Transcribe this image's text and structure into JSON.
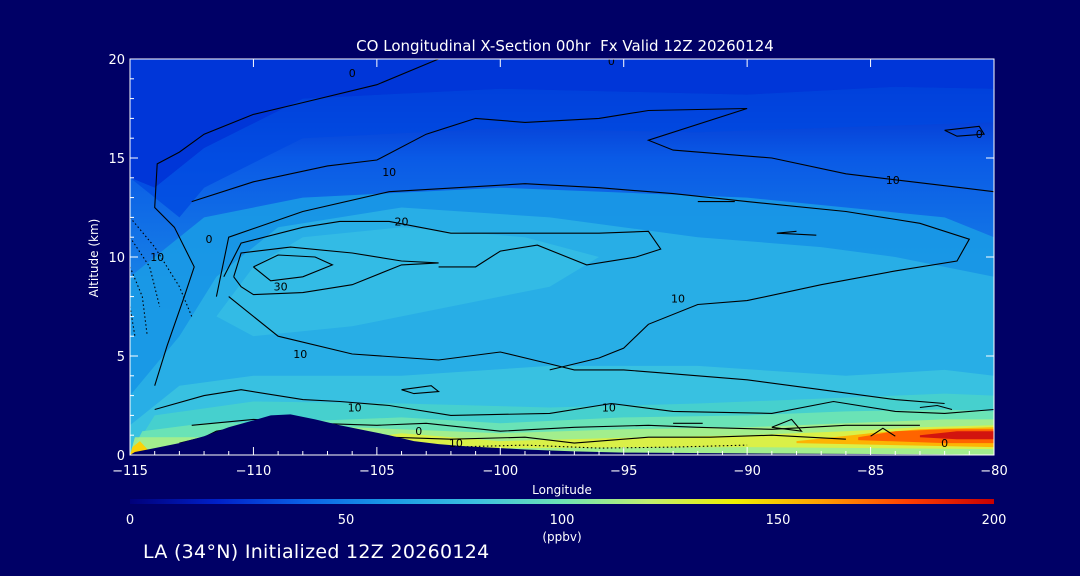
{
  "chart_data": {
    "type": "heatmap",
    "title": "CO Longitudinal X-Section 00hr  Fx Valid 12Z 20260124",
    "xlabel": "Longitude",
    "ylabel": "Altitude (km)",
    "xlim": [
      -115,
      -80
    ],
    "ylim": [
      0,
      20
    ],
    "xticks": [
      -115,
      -110,
      -105,
      -100,
      -95,
      -90,
      -85,
      -80
    ],
    "xtick_labels": [
      "−115",
      "−110",
      "−105",
      "−100",
      "−95",
      "−90",
      "−85",
      "−80"
    ],
    "yticks": [
      0,
      5,
      10,
      15,
      20
    ],
    "colorbar": {
      "min": 0,
      "max": 200,
      "ticks": [
        0,
        50,
        100,
        150,
        200
      ],
      "unit": "(ppbv)",
      "colors": [
        "#00007a",
        "#0020c8",
        "#0a60e6",
        "#1a9ae6",
        "#3cc0e0",
        "#6ee4b4",
        "#c0f070",
        "#f0f000",
        "#ffa000",
        "#ff4000",
        "#c80000"
      ]
    },
    "contour_labels": [
      {
        "text": "0",
        "x": -106.0,
        "y": 19.3
      },
      {
        "text": "0",
        "x": -95.5,
        "y": 19.9
      },
      {
        "text": "10",
        "x": -104.5,
        "y": 14.3
      },
      {
        "text": "10",
        "x": -84.1,
        "y": 13.9
      },
      {
        "text": "0",
        "x": -80.6,
        "y": 16.2
      },
      {
        "text": "20",
        "x": -104.0,
        "y": 11.8
      },
      {
        "text": "10",
        "x": -113.9,
        "y": 10.0
      },
      {
        "text": "0",
        "x": -111.8,
        "y": 10.9
      },
      {
        "text": "30",
        "x": -108.9,
        "y": 8.5
      },
      {
        "text": "10",
        "x": -92.8,
        "y": 7.9
      },
      {
        "text": "10",
        "x": -108.1,
        "y": 5.1
      },
      {
        "text": "10",
        "x": -105.9,
        "y": 2.4
      },
      {
        "text": "10",
        "x": -95.6,
        "y": 2.4
      },
      {
        "text": "0",
        "x": -103.3,
        "y": 1.2
      },
      {
        "text": "10",
        "x": -101.8,
        "y": 0.6
      },
      {
        "text": "0",
        "x": -82.0,
        "y": 0.6
      }
    ],
    "terrain": [
      [
        -115,
        0
      ],
      [
        -114.8,
        0.15
      ],
      [
        -114,
        0.35
      ],
      [
        -113,
        0.6
      ],
      [
        -112,
        0.95
      ],
      [
        -111,
        1.4
      ],
      [
        -110,
        1.75
      ],
      [
        -109.3,
        2.0
      ],
      [
        -108.5,
        2.05
      ],
      [
        -107.5,
        1.8
      ],
      [
        -106.5,
        1.5
      ],
      [
        -105.5,
        1.25
      ],
      [
        -104.5,
        1.0
      ],
      [
        -103.5,
        0.7
      ],
      [
        -102.5,
        0.55
      ],
      [
        -101.5,
        0.45
      ],
      [
        -100,
        0.35
      ],
      [
        -99,
        0.28
      ],
      [
        -97,
        0.18
      ],
      [
        -95,
        0.12
      ],
      [
        -90,
        0.08
      ],
      [
        -85,
        0.05
      ],
      [
        -80,
        0.02
      ]
    ]
  },
  "footer_text": "LA (34°N) Initialized 12Z 20260124"
}
